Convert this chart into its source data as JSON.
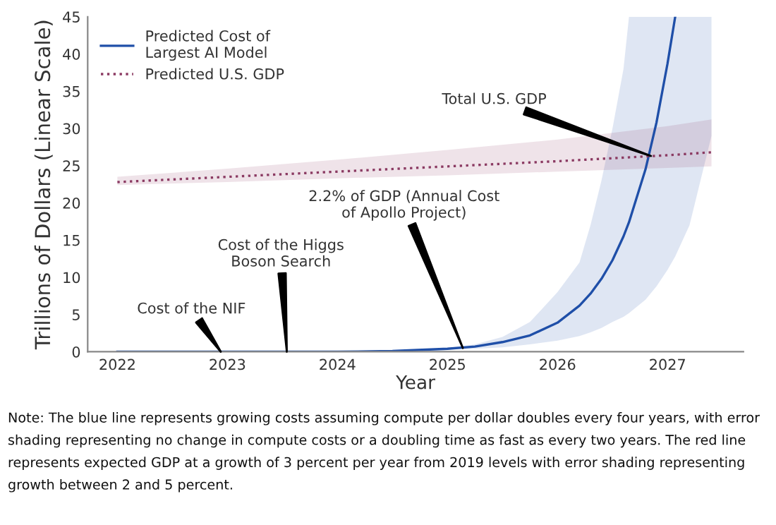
{
  "chart_data": {
    "type": "line",
    "xlabel": "Year",
    "ylabel": "Trillions of Dollars (Linear Scale)",
    "xlim": [
      2021.73,
      2027.69
    ],
    "xticks": [
      2022,
      2023,
      2024,
      2025,
      2026,
      2027
    ],
    "ylim": [
      0,
      45
    ],
    "yticks": [
      0,
      5,
      10,
      15,
      20,
      25,
      30,
      35,
      40,
      45
    ],
    "grid": false,
    "legend": "top left",
    "series": [
      {
        "name": "Predicted Cost of\nLargest AI Model",
        "color": "#1f4fa8",
        "line_style": "solid",
        "x": [
          2022,
          2023,
          2024,
          2024.5,
          2025,
          2025.25,
          2025.5,
          2025.75,
          2026,
          2026.2,
          2026.3,
          2026.4,
          2026.5,
          2026.6,
          2026.65,
          2026.8,
          2026.9,
          2027,
          2027.07,
          2027.2,
          2027.4
        ],
        "values": [
          0,
          0,
          0,
          0.1,
          0.4,
          0.7,
          1.3,
          2.2,
          3.9,
          6.2,
          7.8,
          9.8,
          12.3,
          15.5,
          17.4,
          24.5,
          30.8,
          38.7,
          45,
          null,
          null
        ],
        "lower": [
          0,
          0,
          0,
          0,
          0.3,
          0.4,
          0.6,
          1,
          1.5,
          2.1,
          2.6,
          3.2,
          4,
          4.7,
          5.2,
          7,
          8.8,
          11,
          12.8,
          17,
          29
        ],
        "upper": [
          0,
          0,
          0.1,
          0.2,
          0.5,
          1,
          2,
          4,
          8,
          12,
          17,
          23,
          30,
          38,
          45,
          45,
          45,
          45,
          45,
          45,
          45
        ]
      },
      {
        "name": "Predicted U.S. GDP",
        "color": "#8b3a62",
        "line_style": "dotted",
        "x": [
          2022,
          2023,
          2024,
          2025,
          2026,
          2027,
          2027.4
        ],
        "values": [
          22.8,
          23.5,
          24.2,
          24.9,
          25.6,
          26.4,
          26.8
        ],
        "lower": [
          22.4,
          22.8,
          23.3,
          23.7,
          24.2,
          24.7,
          24.9
        ],
        "upper": [
          23.5,
          24.6,
          25.8,
          27.1,
          28.5,
          30.3,
          31.2
        ]
      }
    ],
    "annotations": [
      {
        "text": "Cost of the NIF",
        "x": 2022.94,
        "y": 0
      },
      {
        "text": "Cost of the Higgs\nBoson Search",
        "x": 2023.54,
        "y": 0
      },
      {
        "text": "2.2% of GDP (Annual Cost\nof Apollo Project)",
        "x": 2025.14,
        "y": 0.5
      },
      {
        "text": "Total U.S. GDP",
        "x": 2026.85,
        "y": 26.3
      },
      "Note: The blue line represents growing costs assuming compute per dollar doubles every four years, with error shading representing no change in compute costs or a doubling time as fast as every two years. The red line represents expected GDP at a growth of 3 percent per year from 2019 levels with error shading representing growth between 2 and 5 percent."
    ]
  }
}
